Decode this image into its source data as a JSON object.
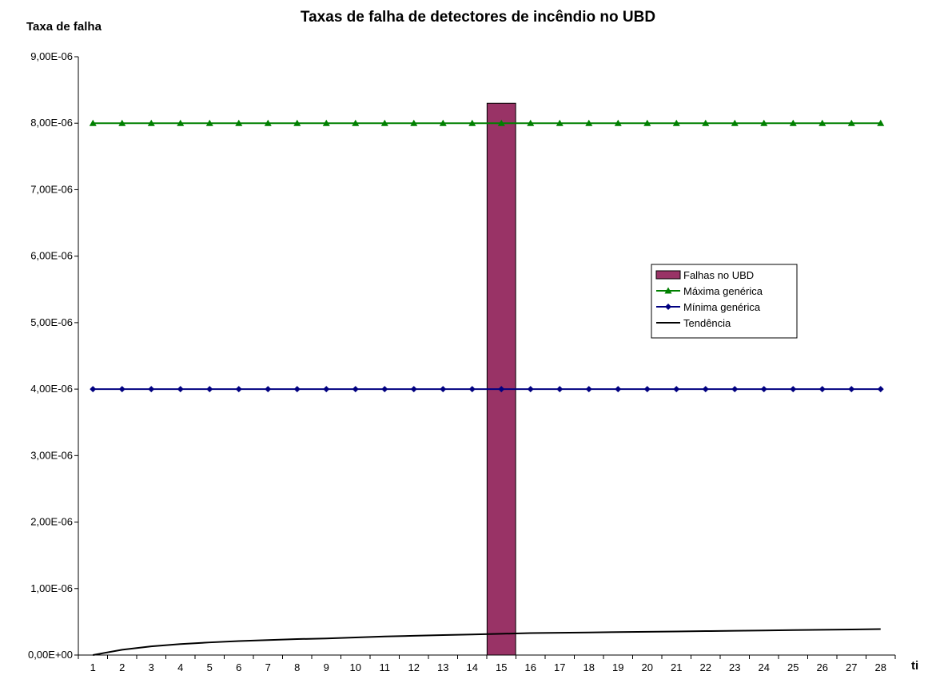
{
  "chart_data": {
    "type": "bar",
    "title": "Taxas de falha de detectores de incêndio no UBD",
    "ylabel": "Taxa de falha",
    "xlabel": "ti",
    "ylim": [
      0,
      9e-06
    ],
    "y_ticks": [
      "0,00E+00",
      "1,00E-06",
      "2,00E-06",
      "3,00E-06",
      "4,00E-06",
      "5,00E-06",
      "6,00E-06",
      "7,00E-06",
      "8,00E-06",
      "9,00E-06"
    ],
    "categories": [
      "1",
      "2",
      "3",
      "4",
      "5",
      "6",
      "7",
      "8",
      "9",
      "10",
      "11",
      "12",
      "13",
      "14",
      "15",
      "16",
      "17",
      "18",
      "19",
      "20",
      "21",
      "22",
      "23",
      "24",
      "25",
      "26",
      "27",
      "28"
    ],
    "grid": false,
    "legend_position": "right-middle",
    "series": [
      {
        "name": "Falhas no UBD",
        "kind": "bar",
        "color": "#993366",
        "values": [
          0,
          0,
          0,
          0,
          0,
          0,
          0,
          0,
          0,
          0,
          0,
          0,
          0,
          0,
          8.3e-06,
          0,
          0,
          0,
          0,
          0,
          0,
          0,
          0,
          0,
          0,
          0,
          0,
          0
        ]
      },
      {
        "name": "Máxima genérica",
        "kind": "line",
        "marker": "triangle",
        "color": "#008000",
        "values": [
          8e-06,
          8e-06,
          8e-06,
          8e-06,
          8e-06,
          8e-06,
          8e-06,
          8e-06,
          8e-06,
          8e-06,
          8e-06,
          8e-06,
          8e-06,
          8e-06,
          8e-06,
          8e-06,
          8e-06,
          8e-06,
          8e-06,
          8e-06,
          8e-06,
          8e-06,
          8e-06,
          8e-06,
          8e-06,
          8e-06,
          8e-06,
          8e-06
        ]
      },
      {
        "name": "Mínima genérica",
        "kind": "line",
        "marker": "diamond",
        "color": "#000080",
        "values": [
          4e-06,
          4e-06,
          4e-06,
          4e-06,
          4e-06,
          4e-06,
          4e-06,
          4e-06,
          4e-06,
          4e-06,
          4e-06,
          4e-06,
          4e-06,
          4e-06,
          4e-06,
          4e-06,
          4e-06,
          4e-06,
          4e-06,
          4e-06,
          4e-06,
          4e-06,
          4e-06,
          4e-06,
          4e-06,
          4e-06,
          4e-06,
          4e-06
        ]
      },
      {
        "name": "Tendência",
        "kind": "line",
        "marker": "none",
        "color": "#000000",
        "values": [
          0,
          8e-08,
          1.3e-07,
          1.65e-07,
          1.9e-07,
          2.1e-07,
          2.25e-07,
          2.4e-07,
          2.5e-07,
          2.65e-07,
          2.8e-07,
          2.9e-07,
          3e-07,
          3.1e-07,
          3.2e-07,
          3.3e-07,
          3.35e-07,
          3.4e-07,
          3.45e-07,
          3.5e-07,
          3.55e-07,
          3.6e-07,
          3.65e-07,
          3.7e-07,
          3.75e-07,
          3.8e-07,
          3.85e-07,
          3.9e-07
        ]
      }
    ]
  }
}
